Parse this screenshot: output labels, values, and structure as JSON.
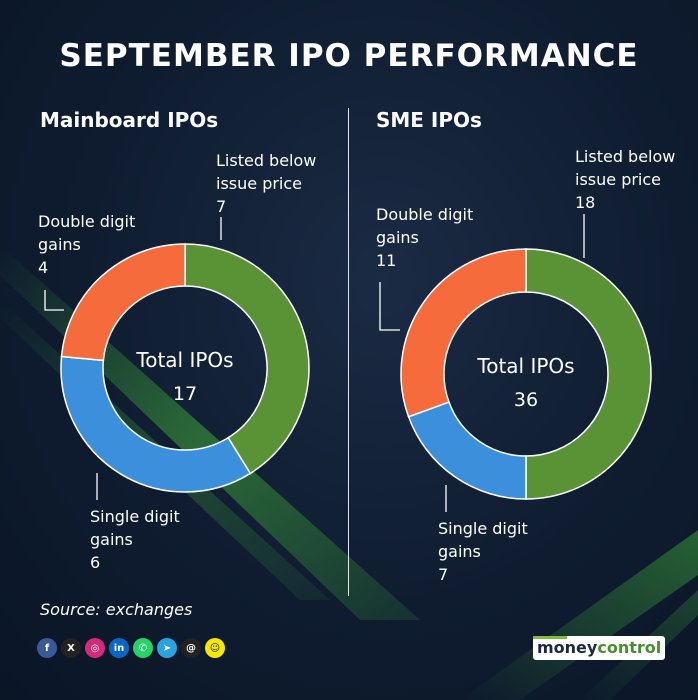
{
  "title": "SEPTEMBER IPO PERFORMANCE",
  "source": "Source: exchanges",
  "colors": {
    "green": "#5a9335",
    "blue": "#3b8fdb",
    "orange": "#f66b3c",
    "background": "#0f1c30"
  },
  "social_icons": [
    "facebook-icon",
    "x-icon",
    "instagram-icon",
    "linkedin-icon",
    "whatsapp-icon",
    "telegram-icon",
    "threads-icon",
    "snapchat-icon"
  ],
  "brand": {
    "part1": "money",
    "part2": "control"
  },
  "chart_data": [
    {
      "type": "pie",
      "title": "Mainboard IPOs",
      "center_label": "Total IPOs",
      "total": 17,
      "slices": [
        {
          "label_lines": [
            "Listed below",
            "issue price"
          ],
          "value": 7,
          "color": "#5a9335"
        },
        {
          "label_lines": [
            "Single digit",
            "gains"
          ],
          "value": 6,
          "color": "#3b8fdb"
        },
        {
          "label_lines": [
            "Double digit",
            "gains"
          ],
          "value": 4,
          "color": "#f66b3c"
        }
      ]
    },
    {
      "type": "pie",
      "title": "SME IPOs",
      "center_label": "Total IPOs",
      "total": 36,
      "slices": [
        {
          "label_lines": [
            "Listed below",
            "issue price"
          ],
          "value": 18,
          "color": "#5a9335"
        },
        {
          "label_lines": [
            "Single digit",
            "gains"
          ],
          "value": 7,
          "color": "#3b8fdb"
        },
        {
          "label_lines": [
            "Double digit",
            "gains"
          ],
          "value": 11,
          "color": "#f66b3c"
        }
      ]
    }
  ]
}
